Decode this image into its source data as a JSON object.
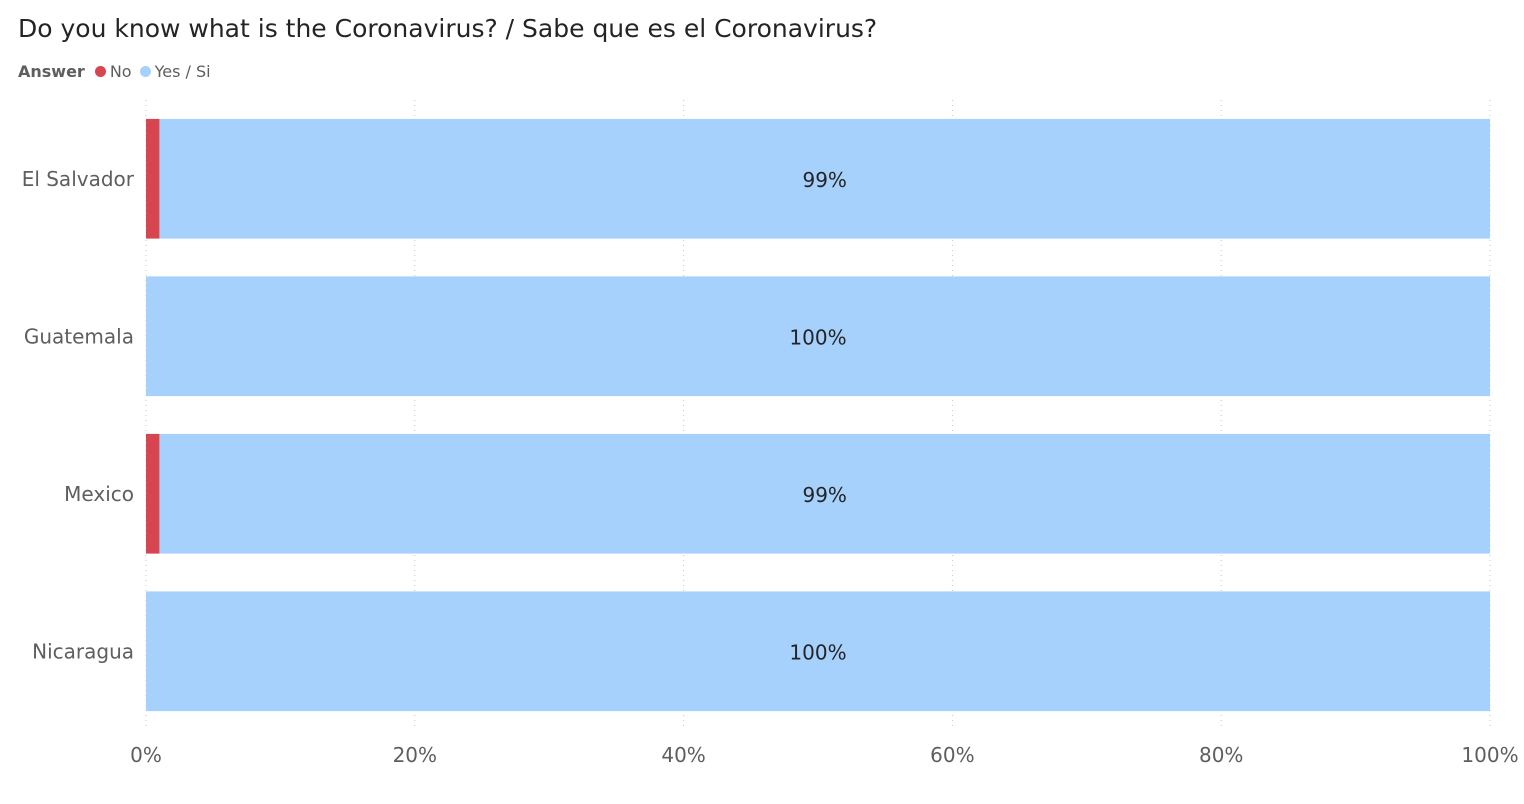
{
  "chart_data": {
    "type": "bar",
    "orientation": "horizontal",
    "stacked": "100%",
    "title": "Do you know what is the Coronavirus? / Sabe que es el Coronavirus?",
    "legend": {
      "title": "Answer",
      "placement": "top-left"
    },
    "categories": [
      "El Salvador",
      "Guatemala",
      "Mexico",
      "Nicaragua"
    ],
    "series": [
      {
        "name": "No",
        "color": "#d64550",
        "values": [
          1,
          0,
          1,
          0
        ]
      },
      {
        "name": "Yes / Si",
        "color": "#a6d1fd",
        "values": [
          99,
          100,
          99,
          100
        ]
      }
    ],
    "data_labels": [
      "99%",
      "100%",
      "99%",
      "100%"
    ],
    "xlim": [
      0,
      100
    ],
    "x_ticks": [
      0,
      20,
      40,
      60,
      80,
      100
    ],
    "x_tick_labels": [
      "0%",
      "20%",
      "40%",
      "60%",
      "80%",
      "100%"
    ],
    "grid": "vertical-dotted"
  }
}
